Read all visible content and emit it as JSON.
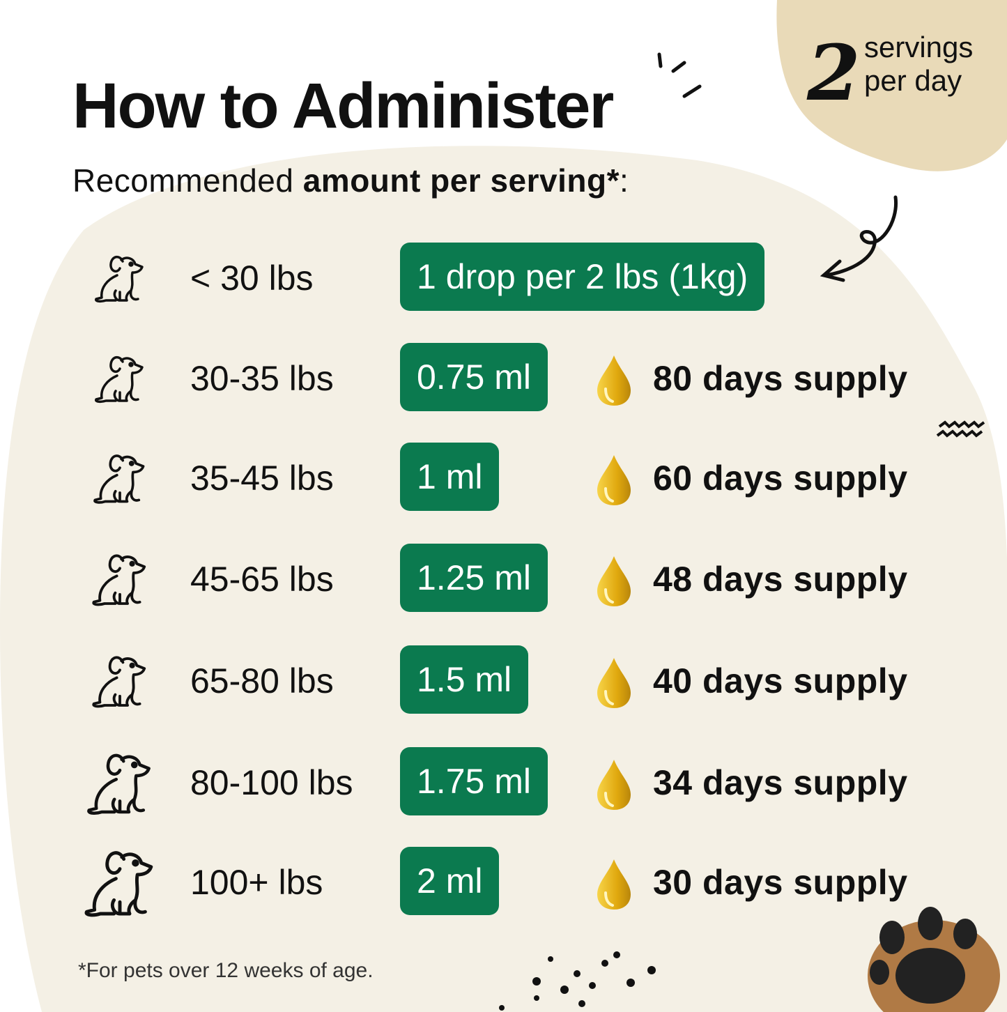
{
  "header": {
    "title": "How to Administer",
    "subtitle_regular": "Recommended ",
    "subtitle_bold": "amount per serving*",
    "subtitle_end": ":"
  },
  "servings_badge": {
    "number": "2",
    "line1": "servings",
    "line2": "per day"
  },
  "colors": {
    "accent_green": "#0b7a4f",
    "cream": "#f4f0e5",
    "tan": "#e9dab8",
    "oil_gold": "#e0b21a"
  },
  "rows": [
    {
      "weight": "< 30 lbs",
      "dose": "1 drop per 2 lbs (1kg)",
      "supply": ""
    },
    {
      "weight": "30-35 lbs",
      "dose": "0.75 ml",
      "supply": "80 days supply"
    },
    {
      "weight": "35-45 lbs",
      "dose": "1 ml",
      "supply": "60 days supply"
    },
    {
      "weight": "45-65 lbs",
      "dose": "1.25 ml",
      "supply": "48 days supply"
    },
    {
      "weight": "65-80 lbs",
      "dose": "1.5 ml",
      "supply": "40 days supply"
    },
    {
      "weight": "80-100 lbs",
      "dose": "1.75 ml",
      "supply": "34 days supply"
    },
    {
      "weight": "100+ lbs",
      "dose": "2 ml",
      "supply": "30 days supply"
    }
  ],
  "footnote": "*For pets over 12 weeks of age."
}
